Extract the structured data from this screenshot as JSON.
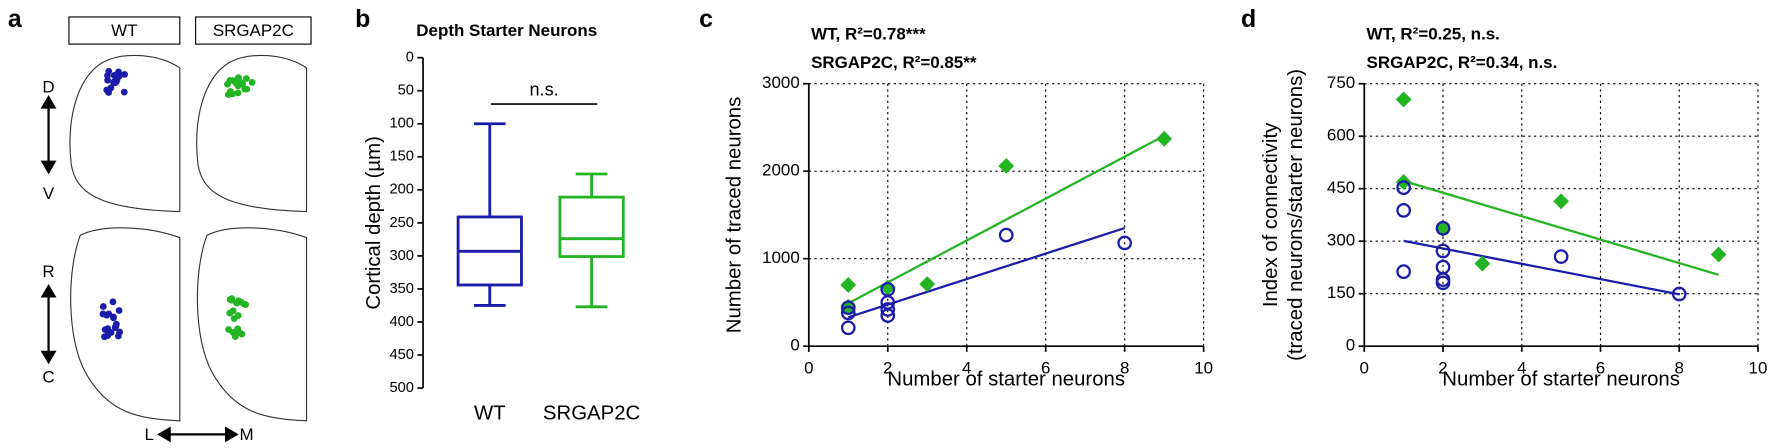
{
  "panel_labels": [
    "a",
    "b",
    "c",
    "d"
  ],
  "diagram": {
    "columns": [
      "WT",
      "SRGAP2C"
    ],
    "axes": {
      "dorsal": "D",
      "ventral": "V",
      "rostral": "R",
      "caudal": "C",
      "lateral": "L",
      "medial": "M"
    }
  },
  "chart_data": [
    {
      "type": "box",
      "title": "Depth Starter Neurons",
      "ylabel": "Cortical depth (µm)",
      "categories": [
        "WT",
        "SRGAP2C"
      ],
      "ylim": [
        0,
        500
      ],
      "yticks": [
        0,
        50,
        100,
        150,
        200,
        250,
        300,
        350,
        400,
        450,
        500
      ],
      "y_inverted": true,
      "series": [
        {
          "color": "#1c1cab",
          "min": 100,
          "q1": 241,
          "median": 293,
          "q3": 344,
          "max": 375
        },
        {
          "color": "#22b422",
          "min": 176,
          "q1": 211,
          "median": 274,
          "q3": 301,
          "max": 377
        }
      ],
      "annotation": "n.s."
    },
    {
      "type": "scatter",
      "xlabel": "Number of starter neurons",
      "ylabel": "Number of traced neurons",
      "xlim": [
        0,
        10
      ],
      "xticks": [
        0,
        2,
        4,
        6,
        8,
        10
      ],
      "ylim": [
        0,
        3000
      ],
      "yticks": [
        0,
        1000,
        2000,
        3000
      ],
      "grid": true,
      "series": [
        {
          "label": "SRGAP2C, R²=0.85**",
          "color": "#22b422",
          "marker": "diamond",
          "x": [
            1,
            1,
            2,
            3,
            5,
            9
          ],
          "values": [
            700,
            450,
            670,
            710,
            2060,
            2370
          ],
          "fit": {
            "x": [
              1,
              9
            ],
            "values": [
              490,
              2405
            ]
          }
        },
        {
          "label": "WT, R²=0.78***",
          "color": "#1c1cab",
          "marker": "open-circle",
          "x": [
            1,
            1,
            1,
            2,
            2,
            2,
            2,
            5,
            8
          ],
          "values": [
            210,
            380,
            440,
            350,
            420,
            500,
            650,
            1270,
            1180
          ],
          "fit": {
            "x": [
              1,
              8
            ],
            "values": [
              330,
              1350
            ]
          }
        }
      ]
    },
    {
      "type": "scatter",
      "xlabel": "Number of starter neurons",
      "ylabel": [
        "Index of connectivity",
        "(traced neurons/starter neurons)"
      ],
      "xlim": [
        0,
        10
      ],
      "xticks": [
        0,
        2,
        4,
        6,
        8,
        10
      ],
      "ylim": [
        0,
        750
      ],
      "yticks": [
        0,
        150,
        300,
        450,
        600,
        750
      ],
      "grid": true,
      "series": [
        {
          "label": "SRGAP2C, R²=0.34, n.s.",
          "color": "#22b422",
          "marker": "diamond",
          "x": [
            1,
            1,
            2,
            3,
            5,
            9
          ],
          "values": [
            705,
            469,
            335,
            236,
            414,
            262
          ],
          "fit": {
            "x": [
              1,
              9
            ],
            "values": [
              472,
              204
            ]
          }
        },
        {
          "label": "WT, R²=0.25, n.s.",
          "color": "#1c1cab",
          "marker": "open-circle",
          "x": [
            1,
            1,
            1,
            2,
            2,
            2,
            2,
            2,
            5,
            8
          ],
          "values": [
            213,
            388,
            453,
            181,
            190,
            226,
            272,
            337,
            256,
            149
          ],
          "fit": {
            "x": [
              1,
              8
            ],
            "values": [
              301,
              148
            ]
          }
        }
      ]
    }
  ]
}
